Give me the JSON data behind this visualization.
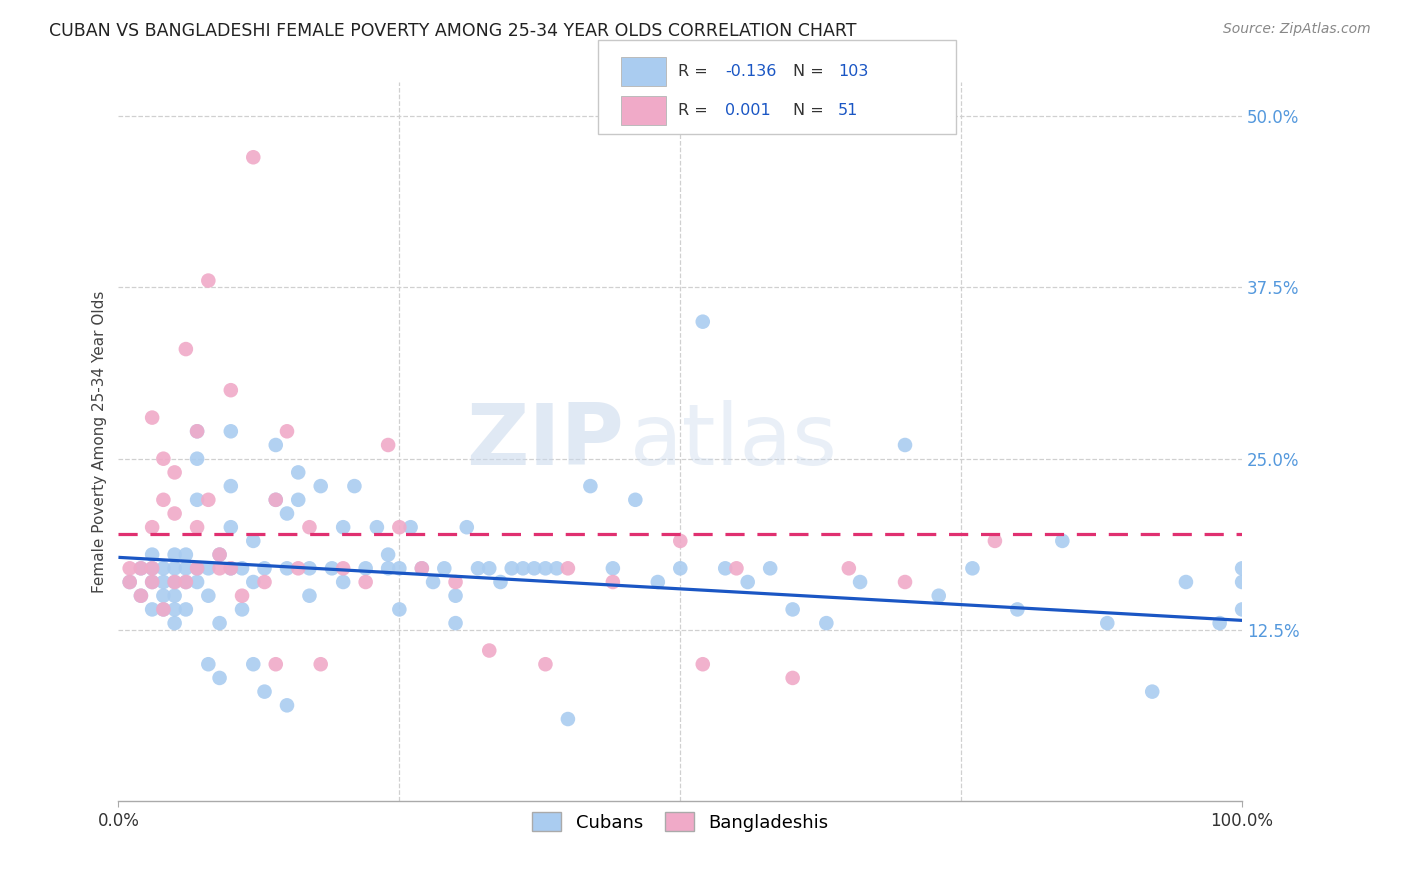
{
  "title": "CUBAN VS BANGLADESHI FEMALE POVERTY AMONG 25-34 YEAR OLDS CORRELATION CHART",
  "source": "Source: ZipAtlas.com",
  "ylabel": "Female Poverty Among 25-34 Year Olds",
  "xlim": [
    0.0,
    1.0
  ],
  "ylim": [
    0.0,
    0.525
  ],
  "ytick_vals": [
    0.125,
    0.25,
    0.375,
    0.5
  ],
  "ytick_labels": [
    "12.5%",
    "25.0%",
    "37.5%",
    "50.0%"
  ],
  "xtick_vals": [
    0.0,
    1.0
  ],
  "xtick_labels": [
    "0.0%",
    "100.0%"
  ],
  "grid_verticals": [
    0.25,
    0.5,
    0.75
  ],
  "legend_entries": [
    {
      "label": "Cubans",
      "color": "#aaccf0",
      "R": "-0.136",
      "N": "103"
    },
    {
      "label": "Bangladeshis",
      "color": "#f0aac8",
      "R": "0.001",
      "N": "51"
    }
  ],
  "cuban_dot_color": "#aaccf0",
  "bang_dot_color": "#f0aac8",
  "cuban_line_color": "#1a56c4",
  "bang_line_color": "#e03070",
  "cuban_line": [
    0.0,
    0.178,
    1.0,
    0.132
  ],
  "bang_line": [
    0.0,
    0.195,
    1.0,
    0.195
  ],
  "cuban_x": [
    0.01,
    0.02,
    0.02,
    0.03,
    0.03,
    0.03,
    0.03,
    0.04,
    0.04,
    0.04,
    0.04,
    0.05,
    0.05,
    0.05,
    0.05,
    0.05,
    0.05,
    0.06,
    0.06,
    0.06,
    0.06,
    0.07,
    0.07,
    0.07,
    0.07,
    0.07,
    0.08,
    0.08,
    0.08,
    0.09,
    0.09,
    0.09,
    0.1,
    0.1,
    0.1,
    0.1,
    0.11,
    0.11,
    0.12,
    0.12,
    0.12,
    0.13,
    0.13,
    0.14,
    0.14,
    0.15,
    0.15,
    0.15,
    0.16,
    0.16,
    0.17,
    0.17,
    0.18,
    0.19,
    0.2,
    0.2,
    0.21,
    0.22,
    0.23,
    0.24,
    0.24,
    0.25,
    0.25,
    0.26,
    0.27,
    0.28,
    0.29,
    0.3,
    0.3,
    0.31,
    0.32,
    0.33,
    0.34,
    0.35,
    0.36,
    0.37,
    0.38,
    0.39,
    0.4,
    0.42,
    0.44,
    0.46,
    0.48,
    0.5,
    0.52,
    0.54,
    0.56,
    0.58,
    0.6,
    0.63,
    0.66,
    0.7,
    0.73,
    0.76,
    0.8,
    0.84,
    0.88,
    0.92,
    0.95,
    0.98,
    1.0,
    1.0,
    1.0
  ],
  "cuban_y": [
    0.16,
    0.15,
    0.17,
    0.14,
    0.16,
    0.18,
    0.17,
    0.15,
    0.14,
    0.17,
    0.16,
    0.15,
    0.14,
    0.17,
    0.16,
    0.18,
    0.13,
    0.16,
    0.14,
    0.18,
    0.17,
    0.27,
    0.25,
    0.22,
    0.17,
    0.16,
    0.15,
    0.1,
    0.17,
    0.18,
    0.13,
    0.09,
    0.2,
    0.23,
    0.27,
    0.17,
    0.14,
    0.17,
    0.1,
    0.16,
    0.19,
    0.08,
    0.17,
    0.22,
    0.26,
    0.21,
    0.07,
    0.17,
    0.24,
    0.22,
    0.15,
    0.17,
    0.23,
    0.17,
    0.2,
    0.16,
    0.23,
    0.17,
    0.2,
    0.18,
    0.17,
    0.14,
    0.17,
    0.2,
    0.17,
    0.16,
    0.17,
    0.13,
    0.15,
    0.2,
    0.17,
    0.17,
    0.16,
    0.17,
    0.17,
    0.17,
    0.17,
    0.17,
    0.06,
    0.23,
    0.17,
    0.22,
    0.16,
    0.17,
    0.35,
    0.17,
    0.16,
    0.17,
    0.14,
    0.13,
    0.16,
    0.26,
    0.15,
    0.17,
    0.14,
    0.19,
    0.13,
    0.08,
    0.16,
    0.13,
    0.16,
    0.17,
    0.14
  ],
  "bang_x": [
    0.01,
    0.01,
    0.02,
    0.02,
    0.03,
    0.03,
    0.03,
    0.03,
    0.04,
    0.04,
    0.04,
    0.05,
    0.05,
    0.05,
    0.06,
    0.06,
    0.07,
    0.07,
    0.07,
    0.08,
    0.08,
    0.09,
    0.09,
    0.1,
    0.1,
    0.11,
    0.12,
    0.13,
    0.14,
    0.14,
    0.15,
    0.16,
    0.17,
    0.18,
    0.2,
    0.22,
    0.24,
    0.25,
    0.27,
    0.3,
    0.33,
    0.38,
    0.4,
    0.44,
    0.5,
    0.52,
    0.55,
    0.6,
    0.65,
    0.7,
    0.78
  ],
  "bang_y": [
    0.16,
    0.17,
    0.15,
    0.17,
    0.16,
    0.2,
    0.28,
    0.17,
    0.14,
    0.22,
    0.25,
    0.16,
    0.21,
    0.24,
    0.16,
    0.33,
    0.2,
    0.27,
    0.17,
    0.38,
    0.22,
    0.18,
    0.17,
    0.17,
    0.3,
    0.15,
    0.47,
    0.16,
    0.22,
    0.1,
    0.27,
    0.17,
    0.2,
    0.1,
    0.17,
    0.16,
    0.26,
    0.2,
    0.17,
    0.16,
    0.11,
    0.1,
    0.17,
    0.16,
    0.19,
    0.1,
    0.17,
    0.09,
    0.17,
    0.16,
    0.19
  ],
  "watermark_zip": "ZIP",
  "watermark_atlas": "atlas",
  "background_color": "#ffffff",
  "grid_color": "#d0d0d0",
  "spine_color": "#aaaaaa",
  "title_color": "#222222",
  "source_color": "#888888",
  "ylabel_color": "#444444",
  "tick_color": "#333333",
  "right_tick_color": "#5599dd"
}
